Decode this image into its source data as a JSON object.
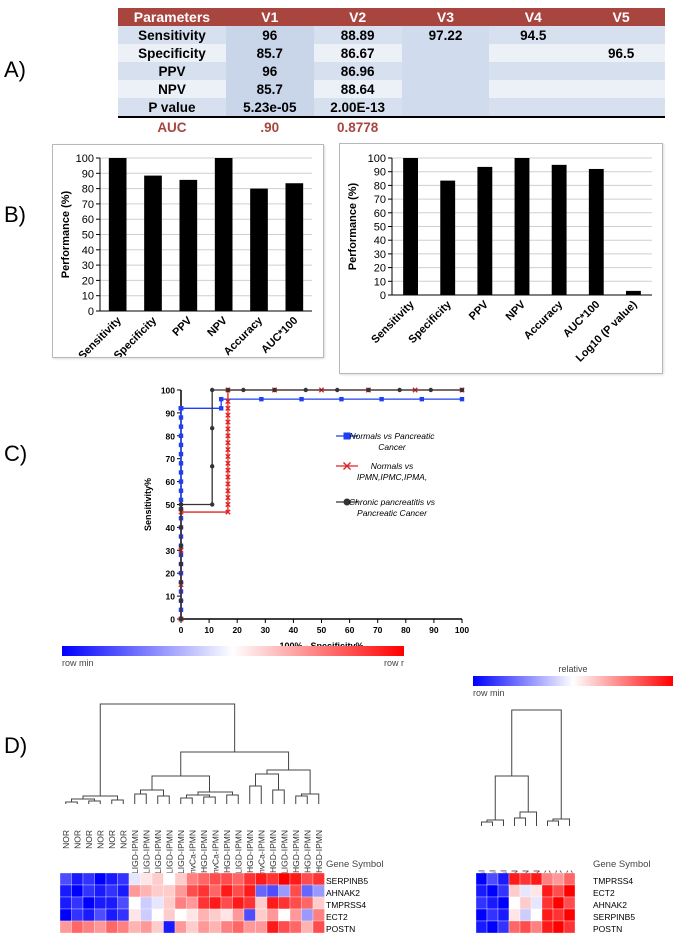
{
  "panel_labels": [
    "A)",
    "B)",
    "C)",
    "D)"
  ],
  "table": {
    "headers": [
      "Parameters",
      "V1",
      "V2",
      "V3",
      "V4",
      "V5"
    ],
    "rows": [
      [
        "Sensitivity",
        "96",
        "88.89",
        "97.22",
        "94.5",
        ""
      ],
      [
        "Specificity",
        "85.7",
        "86.67",
        "",
        "",
        "96.5"
      ],
      [
        "PPV",
        "96",
        "86.96",
        "",
        "",
        ""
      ],
      [
        "NPV",
        "85.7",
        "88.64",
        "",
        "",
        ""
      ],
      [
        "P value",
        "5.23e-05",
        "2.00E-13",
        "",
        "",
        ""
      ]
    ],
    "auc_row": [
      "AUC",
      ".90",
      "0.8778",
      "",
      "",
      ""
    ],
    "header_color": "#a8453f"
  },
  "chart_data": [
    {
      "type": "bar",
      "ylabel": "Performance (%)",
      "categories": [
        "Sensitivity",
        "Specificity",
        "PPV",
        "NPV",
        "Accuracy",
        "AUC*100"
      ],
      "values": [
        100,
        88.5,
        85.7,
        100,
        80,
        83.5
      ],
      "ylim": [
        0,
        100
      ],
      "yticks": [
        0,
        10,
        20,
        30,
        40,
        50,
        60,
        70,
        80,
        90,
        100
      ],
      "grid": true
    },
    {
      "type": "bar",
      "ylabel": "Performance (%)",
      "categories": [
        "Sensitivity",
        "Specificity",
        "PPV",
        "NPV",
        "Accuracy",
        "AUC*100",
        "Log10 (P value)"
      ],
      "values": [
        100,
        83.5,
        93.5,
        100,
        95,
        92,
        3
      ],
      "ylim": [
        0,
        100
      ],
      "yticks": [
        0,
        10,
        20,
        30,
        40,
        50,
        60,
        70,
        80,
        90,
        100
      ],
      "grid": true
    },
    {
      "type": "line",
      "xlabel": "100% - Specificity%",
      "ylabel": "Sensitivity%",
      "xlim": [
        0,
        100
      ],
      "ylim": [
        0,
        100
      ],
      "xticks": [
        0,
        10,
        20,
        30,
        40,
        50,
        60,
        70,
        80,
        90,
        100
      ],
      "yticks": [
        0,
        10,
        20,
        30,
        40,
        50,
        60,
        70,
        80,
        90,
        100
      ],
      "legend_position": "right",
      "series": [
        {
          "name": "Normals vs Pancreatic Cancer",
          "name_lines": [
            "Normals vs Pancreatic",
            "Cancer"
          ],
          "color": "#1f3ff5",
          "marker": "square",
          "x": [
            0,
            0,
            0,
            0,
            0,
            0,
            0,
            0,
            0,
            0,
            0,
            0,
            0,
            0,
            0,
            0,
            0,
            0,
            0,
            0,
            0,
            0,
            0,
            0,
            0,
            0,
            0,
            0,
            0,
            14.3,
            14.3,
            28.6,
            42.9,
            57.1,
            71.4,
            85.7,
            100
          ],
          "y": [
            0,
            4,
            8,
            12,
            16,
            20,
            24,
            28,
            32,
            36,
            40,
            44,
            48,
            52,
            56,
            60,
            64,
            68,
            72,
            76,
            80,
            84,
            88,
            92,
            92,
            92,
            92,
            92,
            92,
            92,
            96,
            96,
            96,
            96,
            96,
            96,
            96
          ]
        },
        {
          "name": "Normals vs IPMN,IPMC,IPMA,",
          "name_lines": [
            "Normals vs",
            "IPMN,IPMC,IPMA,"
          ],
          "color": "#e02424",
          "marker": "x",
          "x": [
            0,
            0,
            0,
            0,
            16.7,
            16.7,
            16.7,
            16.7,
            16.7,
            16.7,
            16.7,
            16.7,
            16.7,
            16.7,
            16.7,
            16.7,
            16.7,
            16.7,
            16.7,
            16.7,
            16.7,
            16.7,
            33.3,
            50,
            66.7,
            83.3,
            100
          ],
          "y": [
            0,
            15,
            30,
            46.7,
            46.7,
            50,
            53,
            56,
            59,
            62,
            65,
            68,
            71,
            74,
            77,
            80,
            83,
            86,
            89,
            92,
            95,
            100,
            100,
            100,
            100,
            100,
            100
          ]
        },
        {
          "name": "Chronic pancreatitis vs Pancreatic Cancer",
          "name_lines": [
            "Chronic pancreatitis vs",
            "Pancreatic Cancer"
          ],
          "color": "#333333",
          "marker": "circle",
          "x": [
            0,
            0,
            0,
            0,
            0,
            0,
            0,
            0,
            0,
            0,
            0,
            0,
            0,
            11.1,
            11.1,
            11.1,
            11.1,
            16.7,
            22.2,
            33.3,
            44.4,
            55.6,
            66.7,
            77.8,
            88.9,
            100
          ],
          "y": [
            0,
            8,
            16,
            24,
            32,
            40,
            48,
            50,
            50,
            50,
            50,
            50,
            50,
            50,
            66.7,
            83.3,
            100,
            100,
            100,
            100,
            100,
            100,
            100,
            100,
            100,
            100
          ]
        }
      ]
    },
    {
      "type": "heatmap",
      "legend_title": "relative",
      "legend_min": "row min",
      "legend_max": "row r",
      "gene_header": "Gene Symbol",
      "columns": [
        "NOR",
        "NOR",
        "NOR",
        "NOR",
        "NOR",
        "NOR",
        "LIGD-IPMN",
        "LIGD-IPMN",
        "LIGD-IPMN",
        "LIGD-IPMN",
        "LIGD-IPMN",
        "InvCa-IPMN",
        "HGD-IPMN",
        "InvCa-IPMN",
        "HGD-IPMN",
        "LIGD-IPMN",
        "HGD-IPMN",
        "InvCa-IPMN",
        "HGD-IPMN",
        "LIGD-IPMN",
        "HGD-IPMN",
        "HGD-IPMN",
        "HGD-IPMN"
      ],
      "rows": [
        "SERPINB5",
        "AHNAK2",
        "TMPRSS4",
        "ECT2",
        "POSTN"
      ],
      "values": [
        [
          0.15,
          0.05,
          0.1,
          0.0,
          0.05,
          0.1,
          0.45,
          0.55,
          0.6,
          0.5,
          0.6,
          0.75,
          0.8,
          0.85,
          0.85,
          0.8,
          0.9,
          0.95,
          0.9,
          1.0,
          0.95,
          0.85,
          0.9
        ],
        [
          0.05,
          0.0,
          0.1,
          0.05,
          0.1,
          0.05,
          0.7,
          0.65,
          0.6,
          0.6,
          0.7,
          0.85,
          0.9,
          0.8,
          0.95,
          0.85,
          0.95,
          0.2,
          0.15,
          0.3,
          0.85,
          0.2,
          0.3
        ],
        [
          0.05,
          0.1,
          0.0,
          0.05,
          0.05,
          0.15,
          0.5,
          0.4,
          0.45,
          0.6,
          0.75,
          0.7,
          0.9,
          0.95,
          0.85,
          0.95,
          0.9,
          0.6,
          0.95,
          0.9,
          0.85,
          0.8,
          0.6
        ],
        [
          0.0,
          0.1,
          0.05,
          0.15,
          0.05,
          0.1,
          0.55,
          0.4,
          0.5,
          0.6,
          0.5,
          0.55,
          0.65,
          0.6,
          0.55,
          0.7,
          0.15,
          0.6,
          0.7,
          0.5,
          0.7,
          0.3,
          0.75
        ],
        [
          0.7,
          0.8,
          0.75,
          0.7,
          0.8,
          0.75,
          0.65,
          0.7,
          0.6,
          0.05,
          0.7,
          0.6,
          0.7,
          0.65,
          0.75,
          0.8,
          0.7,
          0.7,
          0.95,
          0.85,
          0.8,
          0.65,
          0.85
        ]
      ]
    },
    {
      "type": "heatmap",
      "legend_title": "relative",
      "legend_min": "row min",
      "legend_max": "",
      "gene_header": "Gene Symbol",
      "columns": [
        "Normal",
        "Normal",
        "Normal",
        "PanIN",
        "PanIN",
        "PanIN",
        "PDAC",
        "PDAC",
        "PDAC"
      ],
      "rows": [
        "TMPRSS4",
        "ECT2",
        "AHNAK2",
        "SERPINB5",
        "POSTN"
      ],
      "values": [
        [
          0.0,
          0.15,
          0.05,
          0.95,
          0.9,
          0.95,
          0.75,
          0.7,
          0.8
        ],
        [
          0.05,
          0.0,
          0.1,
          0.6,
          0.45,
          0.55,
          0.95,
          0.85,
          1.0
        ],
        [
          0.1,
          0.05,
          0.0,
          0.5,
          0.6,
          0.45,
          0.9,
          1.0,
          0.85
        ],
        [
          0.0,
          0.1,
          0.05,
          0.55,
          0.4,
          0.5,
          0.95,
          0.9,
          1.0
        ],
        [
          0.05,
          0.0,
          0.1,
          0.8,
          0.85,
          0.75,
          0.95,
          1.0,
          0.9
        ]
      ]
    }
  ]
}
